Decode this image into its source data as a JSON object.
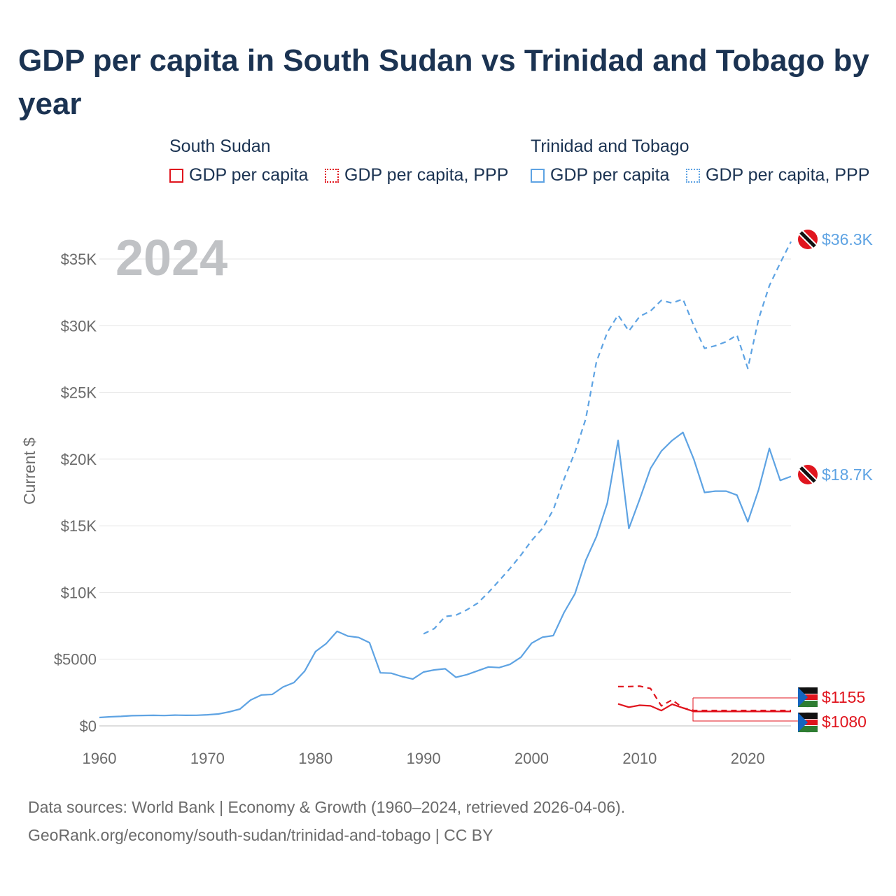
{
  "title": "GDP per capita in South Sudan vs Trinidad and Tobago by year",
  "legend": {
    "groups": [
      {
        "name": "South Sudan",
        "color": "#e0151e",
        "items": [
          {
            "label": "GDP per capita",
            "style": "solid"
          },
          {
            "label": "GDP per capita, PPP",
            "style": "dotted"
          }
        ]
      },
      {
        "name": "Trinidad and Tobago",
        "color": "#5ea3e3",
        "items": [
          {
            "label": "GDP per capita",
            "style": "solid"
          },
          {
            "label": "GDP per capita, PPP",
            "style": "dotted"
          }
        ]
      }
    ]
  },
  "year_watermark": "2024",
  "end_labels": {
    "tt_ppp": "$36.3K",
    "tt_gdp": "$18.7K",
    "ss_ppp": "$1155",
    "ss_gdp": "$1080"
  },
  "footer": {
    "line1": "Data sources: World Bank | Economy & Growth (1960–2024, retrieved 2026-04-06).",
    "line2": "GeoRank.org/economy/south-sudan/trinidad-and-tobago | CC BY"
  },
  "chart_data": {
    "type": "line",
    "title": "GDP per capita in South Sudan vs Trinidad and Tobago by year",
    "xlabel": "",
    "ylabel": "Current $",
    "xlim": [
      1960,
      2024
    ],
    "ylim": [
      0,
      36000
    ],
    "x_ticks": [
      1960,
      1970,
      1980,
      1990,
      2000,
      2010,
      2020
    ],
    "x_tick_labels": [
      "1960",
      "1970",
      "1980",
      "1990",
      "2000",
      "2010",
      "2020"
    ],
    "y_ticks": [
      0,
      5000,
      10000,
      15000,
      20000,
      25000,
      30000,
      35000
    ],
    "y_tick_labels": [
      "$0",
      "$5000",
      "$10K",
      "$15K",
      "$20K",
      "$25K",
      "$30K",
      "$35K"
    ],
    "grid": true,
    "series": [
      {
        "name": "Trinidad and Tobago — GDP per capita",
        "country": "Trinidad and Tobago",
        "style": "solid",
        "color": "#5ea3e3",
        "x": [
          1960,
          1961,
          1962,
          1963,
          1964,
          1965,
          1966,
          1967,
          1968,
          1969,
          1970,
          1971,
          1972,
          1973,
          1974,
          1975,
          1976,
          1977,
          1978,
          1979,
          1980,
          1981,
          1982,
          1983,
          1984,
          1985,
          1986,
          1987,
          1988,
          1989,
          1990,
          1991,
          1992,
          1993,
          1994,
          1995,
          1996,
          1997,
          1998,
          1999,
          2000,
          2001,
          2002,
          2003,
          2004,
          2005,
          2006,
          2007,
          2008,
          2009,
          2010,
          2011,
          2012,
          2013,
          2014,
          2015,
          2016,
          2017,
          2018,
          2019,
          2020,
          2021,
          2022,
          2023,
          2024
        ],
        "y": [
          631,
          680,
          714,
          764,
          781,
          791,
          779,
          808,
          794,
          799,
          836,
          891,
          1050,
          1260,
          1940,
          2320,
          2360,
          2920,
          3250,
          4110,
          5580,
          6180,
          7090,
          6730,
          6630,
          6240,
          3980,
          3950,
          3700,
          3510,
          4040,
          4200,
          4280,
          3640,
          3840,
          4130,
          4420,
          4370,
          4610,
          5150,
          6200,
          6650,
          6770,
          8500,
          9900,
          12400,
          14200,
          16700,
          21400,
          14800,
          17000,
          19300,
          20600,
          21400,
          22000,
          20000,
          17500,
          17600,
          17600,
          17300,
          15300,
          17700,
          20800,
          18400,
          18700
        ]
      },
      {
        "name": "Trinidad and Tobago — GDP per capita, PPP",
        "country": "Trinidad and Tobago",
        "style": "dashed",
        "color": "#5ea3e3",
        "x": [
          1990,
          1991,
          1992,
          1993,
          1994,
          1995,
          1996,
          1997,
          1998,
          1999,
          2000,
          2001,
          2002,
          2003,
          2004,
          2005,
          2006,
          2007,
          2008,
          2009,
          2010,
          2011,
          2012,
          2013,
          2014,
          2015,
          2016,
          2017,
          2018,
          2019,
          2020,
          2021,
          2022,
          2023,
          2024
        ],
        "y": [
          6900,
          7300,
          8200,
          8300,
          8700,
          9200,
          10000,
          10900,
          11800,
          12800,
          13900,
          14800,
          16200,
          18500,
          20500,
          23000,
          27300,
          29500,
          30800,
          29600,
          30700,
          31100,
          31900,
          31700,
          32000,
          30000,
          28300,
          28500,
          28800,
          29300,
          26800,
          30500,
          33000,
          34700,
          36300
        ]
      },
      {
        "name": "South Sudan — GDP per capita",
        "country": "South Sudan",
        "style": "solid",
        "color": "#e0151e",
        "x": [
          2008,
          2009,
          2010,
          2011,
          2012,
          2013,
          2014,
          2015,
          2024
        ],
        "y": [
          1650,
          1400,
          1550,
          1500,
          1150,
          1620,
          1350,
          1080,
          1080
        ]
      },
      {
        "name": "South Sudan — GDP per capita, PPP",
        "country": "South Sudan",
        "style": "dashed",
        "color": "#e0151e",
        "x": [
          2008,
          2009,
          2010,
          2011,
          2012,
          2013,
          2014,
          2015,
          2024
        ],
        "y": [
          2950,
          2950,
          2980,
          2800,
          1500,
          1950,
          1350,
          1155,
          1155
        ]
      }
    ]
  }
}
